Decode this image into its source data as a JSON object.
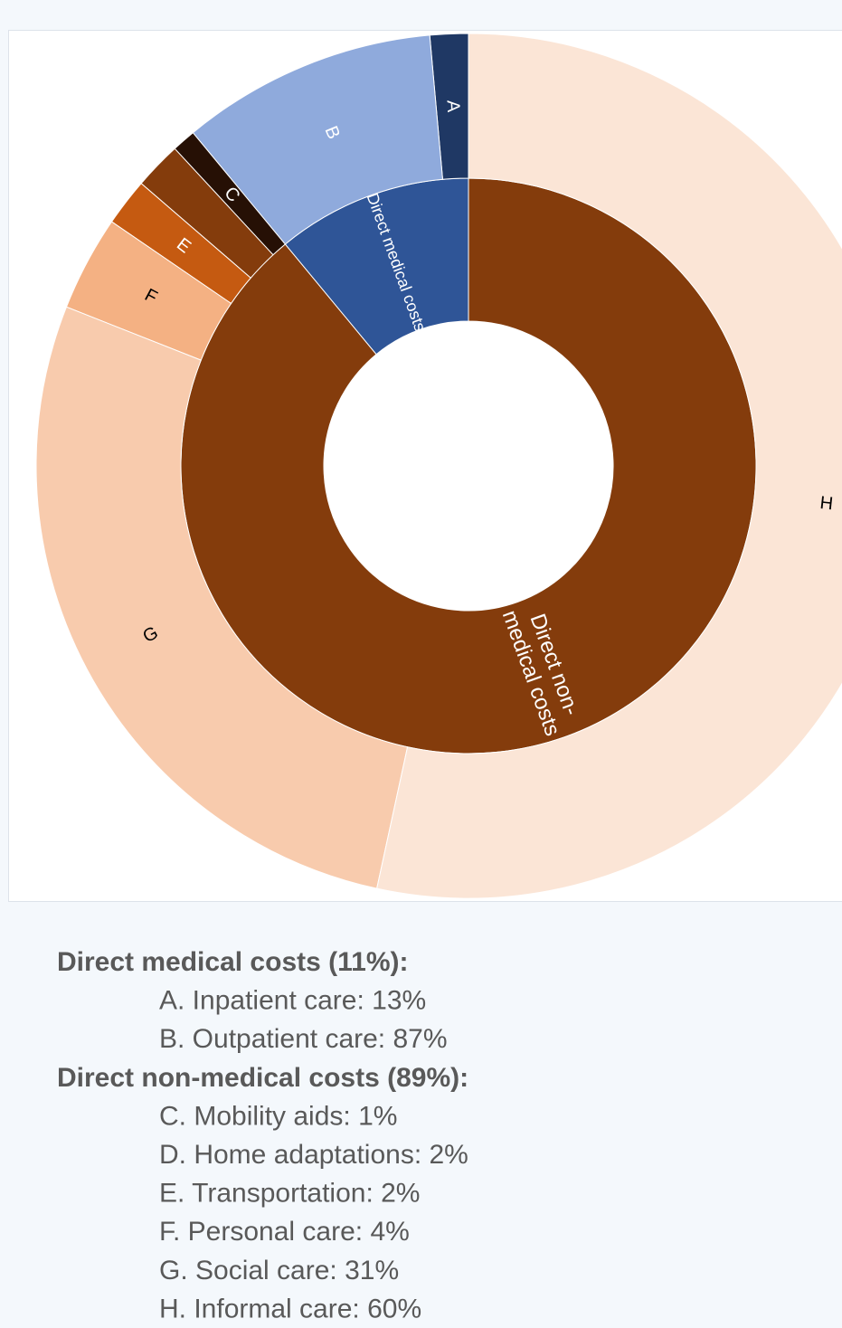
{
  "chart_data": {
    "type": "sunburst",
    "groups": [
      {
        "chart_label": [
          "Direct medical costs"
        ],
        "legend_label": "Direct medical costs (11%):",
        "value": 11,
        "color": "#2f5597",
        "children": [
          {
            "letter": "A",
            "legend_label": "A. Inpatient care: 13%",
            "value": 13,
            "color": "#1f3864"
          },
          {
            "letter": "B",
            "legend_label": "B. Outpatient care: 87%",
            "value": 87,
            "color": "#8faadc"
          }
        ]
      },
      {
        "chart_label": [
          "Direct non-",
          "medical costs"
        ],
        "legend_label": "Direct non-medical costs (89%):",
        "value": 89,
        "color": "#843c0c",
        "children": [
          {
            "letter": "C",
            "legend_label": "C. Mobility aids: 1%",
            "value": 1,
            "color": "#261005"
          },
          {
            "legend_label": "D. Home adaptations: 2%",
            "value": 2,
            "color": "#843c0c"
          },
          {
            "letter": "E",
            "legend_label": "E. Transportation: 2%",
            "value": 2,
            "color": "#c55a11"
          },
          {
            "letter": "F",
            "legend_label": "F. Personal care: 4%",
            "value": 4,
            "color": "#f4b183"
          },
          {
            "letter": "G",
            "legend_label": "G. Social care: 31%",
            "value": 31,
            "color": "#f8cbad"
          },
          {
            "letter": "H",
            "legend_label": "H. Informal care: 60%",
            "value": 60,
            "color": "#fbe5d6"
          }
        ]
      }
    ]
  }
}
